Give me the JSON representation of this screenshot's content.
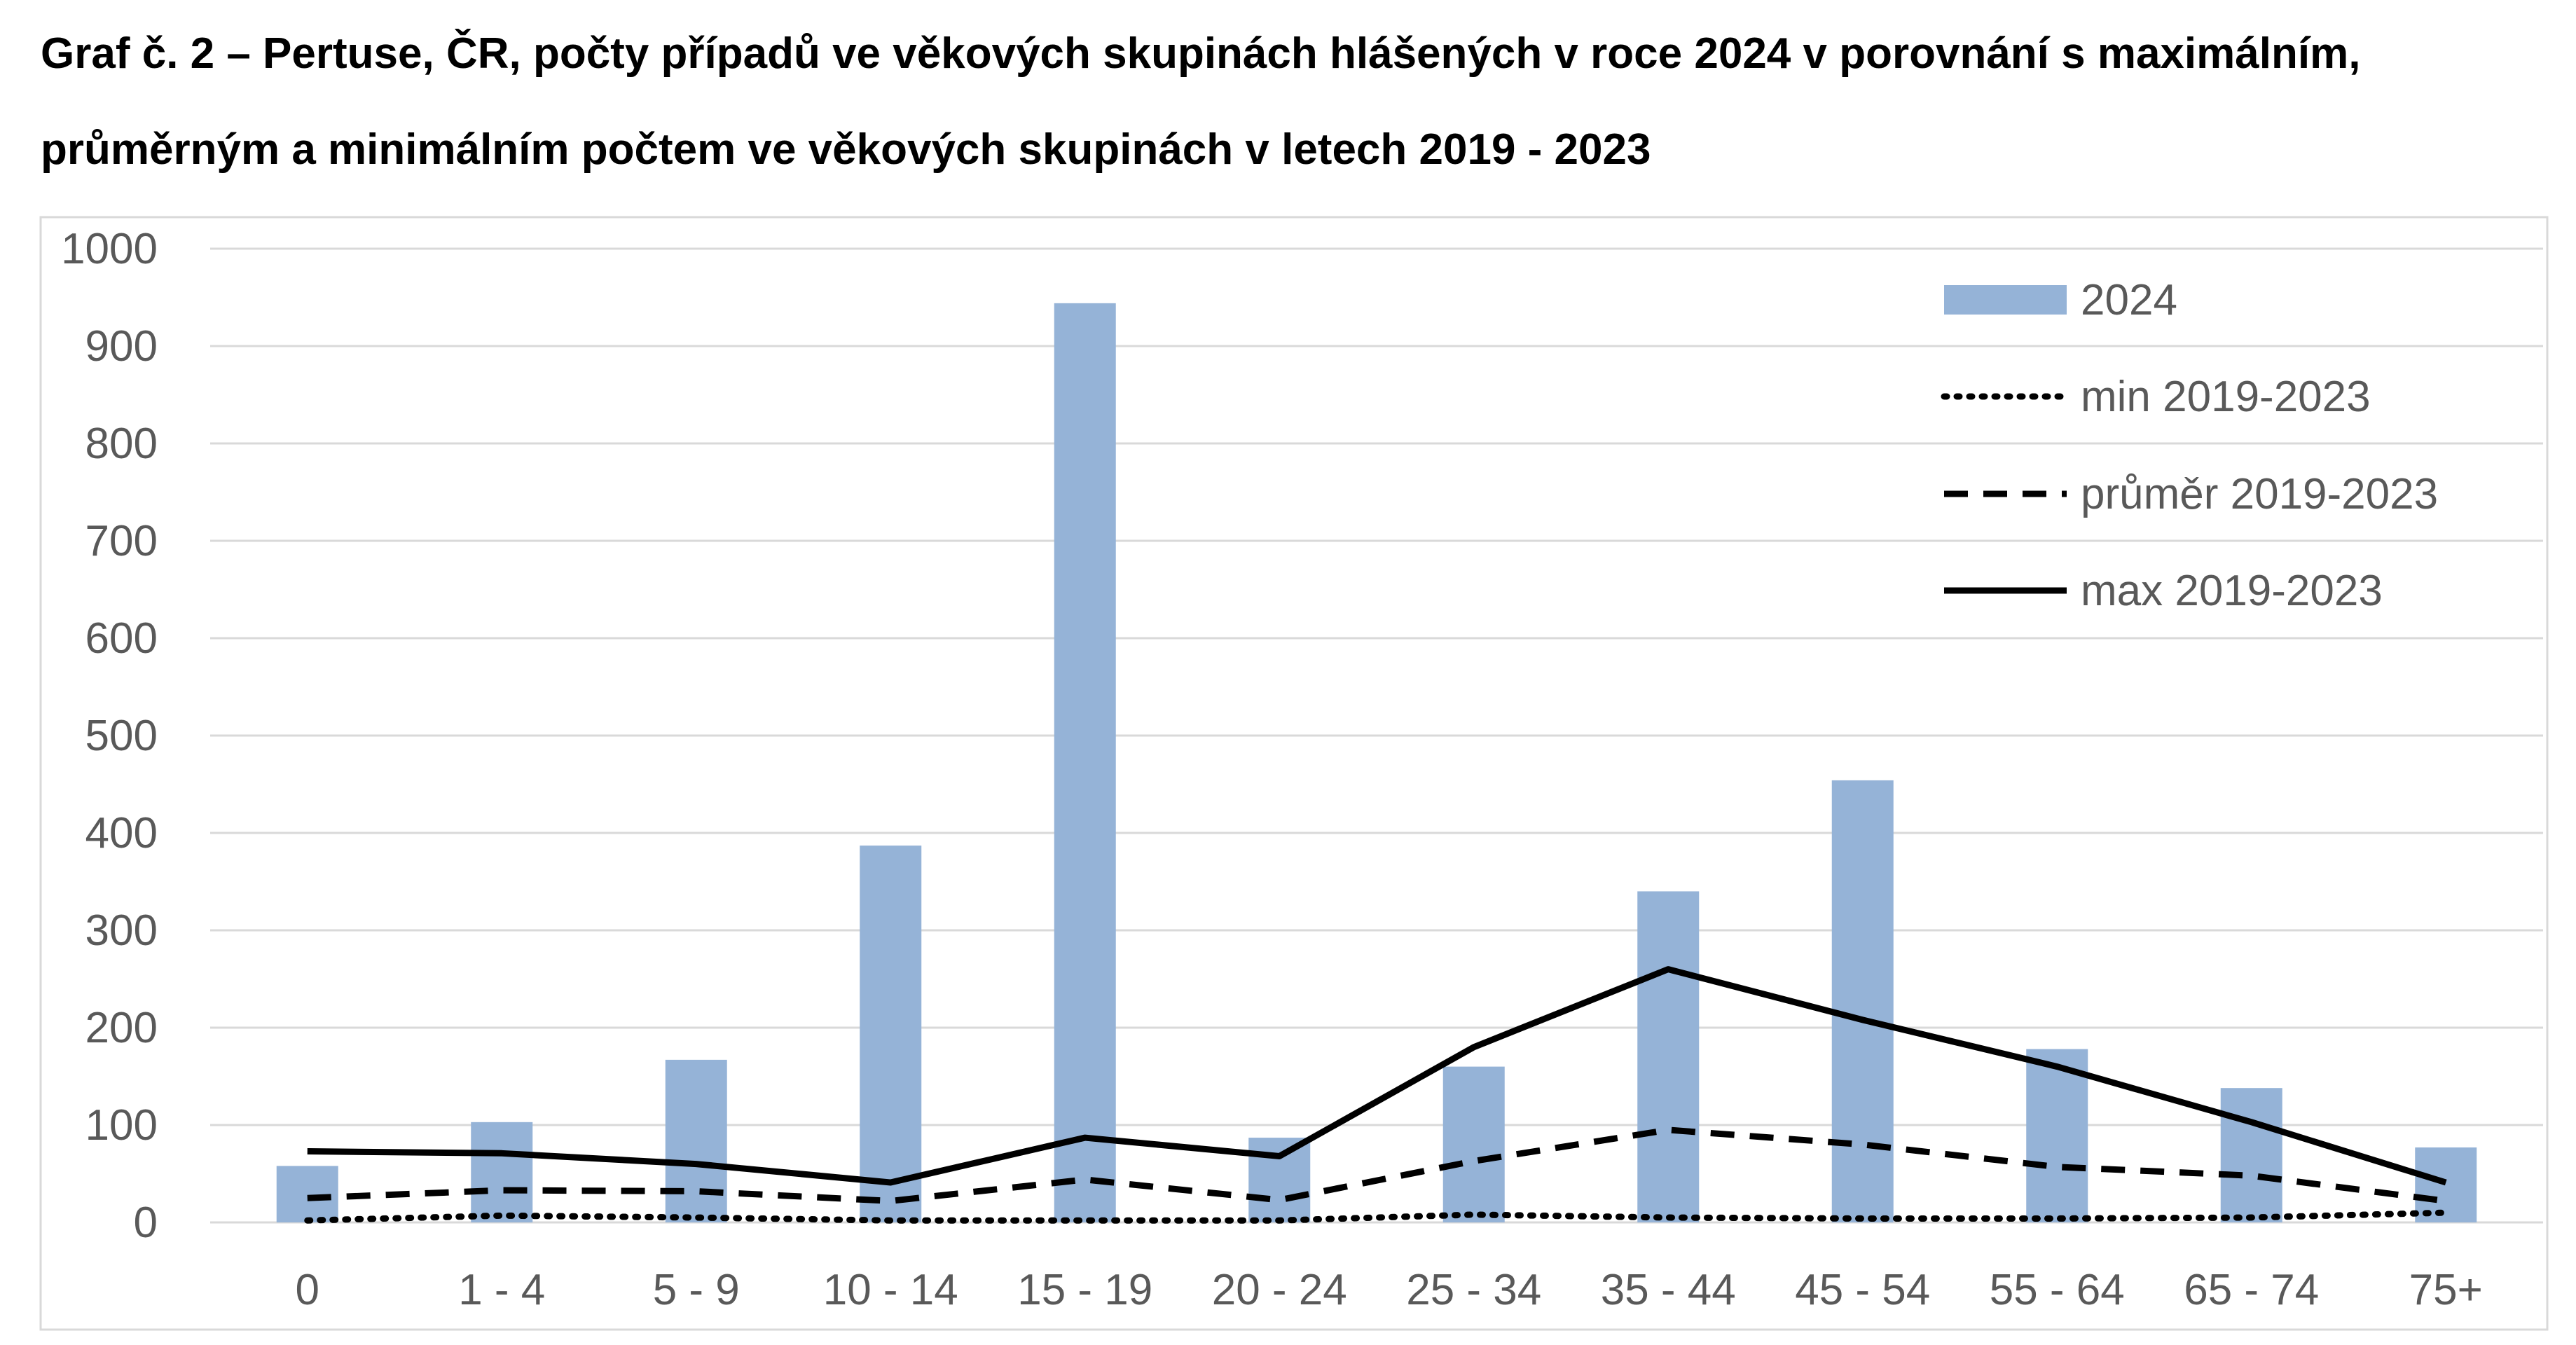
{
  "title_line1": "Graf č. 2 – Pertuse, ČR, počty případů ve věkových skupinách hlášených v roce 2024 v porovnání s maximálním,",
  "title_line2": "průměrným a minimálním počtem ve věkových skupinách v  letech 2019 - 2023",
  "chart_data": {
    "type": "bar",
    "title": "Graf č. 2 – Pertuse, ČR, počty případů ve věkových skupinách hlášených v roce 2024 v porovnání s maximálním, průměrným a minimálním počtem ve věkových skupinách v  letech 2019 - 2023",
    "xlabel": "",
    "ylabel": "",
    "ylim": [
      0,
      1000
    ],
    "yticks": [
      "0",
      "100",
      "200",
      "300",
      "400",
      "500",
      "600",
      "700",
      "800",
      "900",
      "1000"
    ],
    "grid": true,
    "legend_position": "top-right",
    "categories": [
      "0",
      "1 - 4",
      "5 - 9",
      "10 - 14",
      "15 - 19",
      "20 - 24",
      "25 - 34",
      "35 - 44",
      "45 - 54",
      "55 - 64",
      "65 - 74",
      "75+"
    ],
    "series": [
      {
        "name": "2024",
        "kind": "bar",
        "color": "#95b3d7",
        "values": [
          58,
          103,
          167,
          387,
          944,
          87,
          160,
          340,
          454,
          178,
          138,
          77
        ]
      },
      {
        "name": "min 2019-2023",
        "kind": "line",
        "style": "dotted",
        "color": "#000000",
        "values": [
          2,
          7,
          5,
          2,
          2,
          2,
          8,
          5,
          4,
          4,
          5,
          10
        ]
      },
      {
        "name": "průměr 2019-2023",
        "kind": "line",
        "style": "dashed",
        "color": "#000000",
        "values": [
          25,
          33,
          32,
          22,
          44,
          23,
          63,
          95,
          80,
          57,
          48,
          22
        ]
      },
      {
        "name": "max 2019-2023",
        "kind": "line",
        "style": "solid",
        "color": "#000000",
        "values": [
          73,
          71,
          60,
          41,
          87,
          68,
          180,
          260,
          208,
          160,
          103,
          41
        ]
      }
    ]
  }
}
